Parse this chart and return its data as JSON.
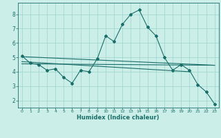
{
  "xlabel": "Humidex (Indice chaleur)",
  "background_color": "#cceee8",
  "grid_color": "#a0d8d0",
  "line_color": "#1a6e6a",
  "xlim": [
    -0.5,
    23.5
  ],
  "ylim": [
    1.5,
    8.8
  ],
  "xticks": [
    0,
    1,
    2,
    3,
    4,
    5,
    6,
    7,
    8,
    9,
    10,
    11,
    12,
    13,
    14,
    15,
    16,
    17,
    18,
    19,
    20,
    21,
    22,
    23
  ],
  "yticks": [
    2,
    3,
    4,
    5,
    6,
    7,
    8
  ],
  "line1_x": [
    0,
    1,
    2,
    3,
    4,
    5,
    6,
    7,
    8,
    9,
    10,
    11,
    12,
    13,
    14,
    15,
    16,
    17,
    18,
    19,
    20,
    21,
    22,
    23
  ],
  "line1_y": [
    5.1,
    4.6,
    4.5,
    4.1,
    4.2,
    3.6,
    3.2,
    4.1,
    4.0,
    4.9,
    6.5,
    6.1,
    7.3,
    8.0,
    8.3,
    7.1,
    6.5,
    5.0,
    4.1,
    4.5,
    4.1,
    3.1,
    2.6,
    1.75
  ],
  "line2_x": [
    0,
    23
  ],
  "line2_y": [
    5.05,
    4.45
  ],
  "line3_x": [
    0,
    20
  ],
  "line3_y": [
    4.7,
    4.0
  ],
  "line4_x": [
    0,
    23
  ],
  "line4_y": [
    4.55,
    4.45
  ]
}
